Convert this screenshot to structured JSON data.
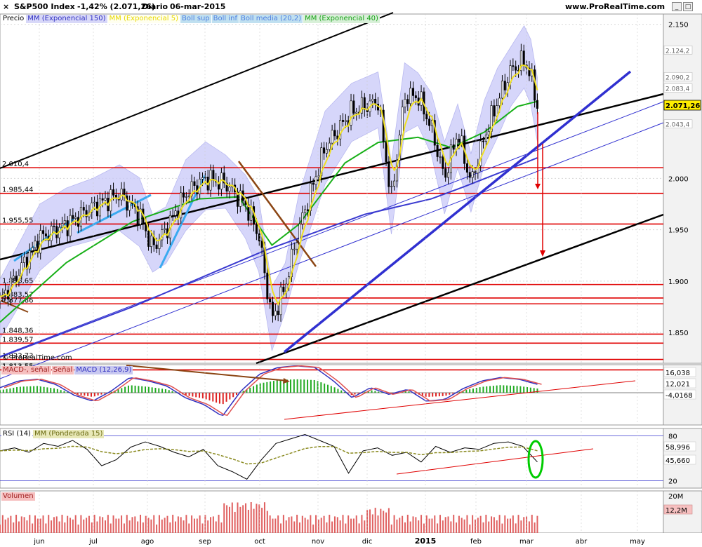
{
  "header": {
    "instrument": "S&P500 Index",
    "change": "-1,42% (2.071,26)",
    "period": "Diario",
    "date": "06-mar-2015",
    "site": "www.ProRealTime.com",
    "watermark": "© ProRealTime.com"
  },
  "colors": {
    "price": "#000000",
    "ema150": "#3a3ad0",
    "ema5": "#f0e020",
    "ema40": "#18b018",
    "bands": "#c8c8f8",
    "support": "#e00000",
    "channel": "#000000",
    "trend_blue": "#3030d0",
    "trend_brown": "#8b4513",
    "macd_pos": "#22aa22",
    "macd_neg": "#dd2222"
  },
  "legends": {
    "price": [
      "Precio",
      "MM (Exponencial 150)",
      "MM (Exponencial 5)",
      "Boll sup",
      "Boll inf",
      "Boll media (20,2)",
      "MM (Exponencial 40)"
    ],
    "macd": [
      "MACD-, señal",
      "Señal",
      "MACD (12,26,9)"
    ],
    "rsi": [
      "RSI (14)",
      "MM (Ponderada 15)"
    ],
    "volume": [
      "Volumen"
    ]
  },
  "chart_data": {
    "type": "candlestick",
    "title": "S&P500 Index",
    "x_months": [
      "jun",
      "jul",
      "ago",
      "sep",
      "oct",
      "nov",
      "dic",
      "2015",
      "feb",
      "mar",
      "abr",
      "may"
    ],
    "price_panel": {
      "ylim": [
        1820,
        2160
      ],
      "yticks": [
        {
          "label": "2.150",
          "value": 2150
        },
        {
          "label": "2.000",
          "value": 2000
        },
        {
          "label": "1.950",
          "value": 1950
        },
        {
          "label": "1.900",
          "value": 1900
        },
        {
          "label": "1.850",
          "value": 1850
        }
      ],
      "last_price": {
        "label": "2.071,26",
        "value": 2071.26
      },
      "right_tags": [
        {
          "label": "2.124,2",
          "value": 2125
        },
        {
          "label": "2.090,2",
          "value": 2099
        },
        {
          "label": "2.083,4",
          "value": 2088
        },
        {
          "label": "2.043,4",
          "value": 2053
        }
      ],
      "support_levels": [
        {
          "label": "2.010,4",
          "value": 2010.4
        },
        {
          "label": "1.985,44",
          "value": 1985.44
        },
        {
          "label": "1.955,55",
          "value": 1955.55
        },
        {
          "label": "1.896,65",
          "value": 1896.65
        },
        {
          "label": "1.883,57",
          "value": 1883.57
        },
        {
          "label": "1.877,86",
          "value": 1877.86
        },
        {
          "label": "1.848,36",
          "value": 1848.36
        },
        {
          "label": "1.839,57",
          "value": 1839.57
        },
        {
          "label": "1.823,73",
          "value": 1823.73
        },
        {
          "label": "1.813,55",
          "value": 1813.55
        }
      ],
      "close_path": [
        {
          "x": 0,
          "y": 1880
        },
        {
          "x": 0.06,
          "y": 1942
        },
        {
          "x": 0.1,
          "y": 1955
        },
        {
          "x": 0.14,
          "y": 1972
        },
        {
          "x": 0.18,
          "y": 1985
        },
        {
          "x": 0.21,
          "y": 1965
        },
        {
          "x": 0.23,
          "y": 1932
        },
        {
          "x": 0.25,
          "y": 1950
        },
        {
          "x": 0.28,
          "y": 1985
        },
        {
          "x": 0.31,
          "y": 2000
        },
        {
          "x": 0.34,
          "y": 1995
        },
        {
          "x": 0.37,
          "y": 1975
        },
        {
          "x": 0.39,
          "y": 1945
        },
        {
          "x": 0.41,
          "y": 1862
        },
        {
          "x": 0.43,
          "y": 1895
        },
        {
          "x": 0.45,
          "y": 1950
        },
        {
          "x": 0.49,
          "y": 2030
        },
        {
          "x": 0.53,
          "y": 2065
        },
        {
          "x": 0.57,
          "y": 2075
        },
        {
          "x": 0.59,
          "y": 1980
        },
        {
          "x": 0.61,
          "y": 2080
        },
        {
          "x": 0.63,
          "y": 2080
        },
        {
          "x": 0.65,
          "y": 2050
        },
        {
          "x": 0.67,
          "y": 2000
        },
        {
          "x": 0.69,
          "y": 2045
        },
        {
          "x": 0.71,
          "y": 1995
        },
        {
          "x": 0.73,
          "y": 2040
        },
        {
          "x": 0.75,
          "y": 2075
        },
        {
          "x": 0.77,
          "y": 2105
        },
        {
          "x": 0.79,
          "y": 2115
        },
        {
          "x": 0.8,
          "y": 2100
        },
        {
          "x": 0.81,
          "y": 2071
        }
      ],
      "ema150": [
        {
          "x": 0,
          "y": 1826
        },
        {
          "x": 0.2,
          "y": 1875
        },
        {
          "x": 0.4,
          "y": 1930
        },
        {
          "x": 0.55,
          "y": 1965
        },
        {
          "x": 0.65,
          "y": 1980
        },
        {
          "x": 0.7,
          "y": 1992
        },
        {
          "x": 0.81,
          "y": 2020
        }
      ],
      "ema40": [
        {
          "x": 0,
          "y": 1860
        },
        {
          "x": 0.1,
          "y": 1918
        },
        {
          "x": 0.2,
          "y": 1958
        },
        {
          "x": 0.3,
          "y": 1980
        },
        {
          "x": 0.36,
          "y": 1982
        },
        {
          "x": 0.41,
          "y": 1935
        },
        {
          "x": 0.45,
          "y": 1955
        },
        {
          "x": 0.52,
          "y": 2015
        },
        {
          "x": 0.57,
          "y": 2035
        },
        {
          "x": 0.63,
          "y": 2040
        },
        {
          "x": 0.68,
          "y": 2030
        },
        {
          "x": 0.73,
          "y": 2045
        },
        {
          "x": 0.78,
          "y": 2070
        },
        {
          "x": 0.81,
          "y": 2075
        }
      ]
    },
    "macd_panel": {
      "yticks": [
        {
          "label": "16,038",
          "value": 16.038
        },
        {
          "label": "12,021",
          "value": 12.021
        },
        {
          "label": "-4,0168",
          "value": -4.0168
        }
      ],
      "values": [
        6,
        14,
        16,
        10,
        -3,
        -10,
        2,
        18,
        14,
        8,
        -6,
        -14,
        -28,
        2,
        22,
        30,
        32,
        30,
        14,
        -6,
        6,
        -2,
        4,
        -10,
        -8,
        5,
        14,
        18,
        16,
        10
      ]
    },
    "rsi_panel": {
      "ylim": [
        10,
        90
      ],
      "yticks": [
        {
          "label": "80",
          "value": 80
        },
        {
          "label": "20",
          "value": 20
        }
      ],
      "tags": [
        {
          "label": "58,996",
          "value": 58.996
        },
        {
          "label": "45,660",
          "value": 45.66
        }
      ],
      "values": [
        60,
        64,
        58,
        70,
        66,
        74,
        62,
        40,
        48,
        65,
        72,
        66,
        58,
        52,
        62,
        40,
        32,
        22,
        48,
        70,
        76,
        82,
        74,
        66,
        30,
        60,
        64,
        54,
        58,
        45,
        66,
        58,
        64,
        62,
        70,
        72,
        66,
        45
      ]
    },
    "volume_panel": {
      "yticks": [
        {
          "label": "20M",
          "value": 20
        }
      ],
      "last": {
        "label": "12,2M",
        "value": 12.2
      }
    }
  }
}
